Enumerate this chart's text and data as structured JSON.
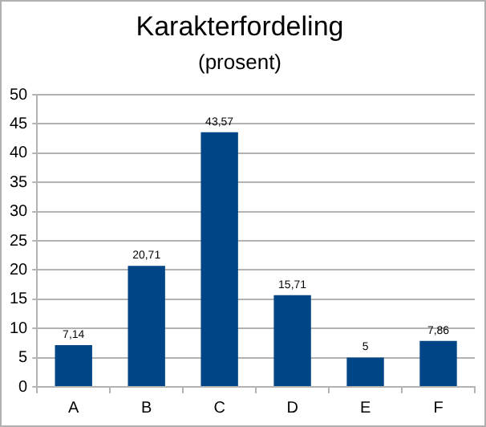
{
  "chart_data": {
    "type": "bar",
    "title": "Karakterfordeling",
    "subtitle": "(prosent)",
    "categories": [
      "A",
      "B",
      "C",
      "D",
      "E",
      "F"
    ],
    "values": [
      7.14,
      20.71,
      43.57,
      15.71,
      5,
      7.86
    ],
    "value_labels": [
      "7,14",
      "20,71",
      "43,57",
      "15,71",
      "5",
      "7,86"
    ],
    "color": "#004586",
    "ylim": [
      0,
      50
    ],
    "yticks": [
      0,
      5,
      10,
      15,
      20,
      25,
      30,
      35,
      40,
      45,
      50
    ],
    "grid": "y"
  }
}
